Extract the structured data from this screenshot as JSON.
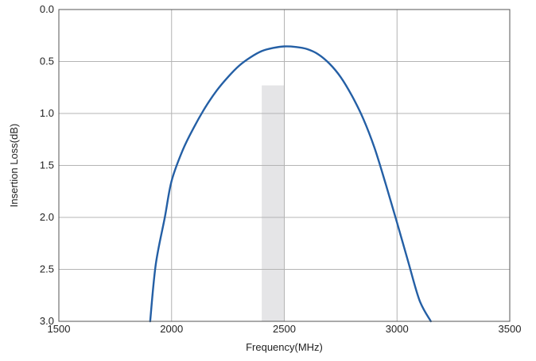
{
  "chart_data": {
    "type": "line",
    "title": "",
    "xlabel": "Frequency(MHz)",
    "ylabel": "Insertion Loss(dB)",
    "xlim": [
      1500,
      3500
    ],
    "ylim": [
      0.0,
      3.0
    ],
    "y_inverted": true,
    "grid": true,
    "x_ticks": [
      "1500",
      "2000",
      "2500",
      "3000",
      "3500"
    ],
    "y_ticks": [
      "0.0",
      "0.5",
      "1.0",
      "1.5",
      "2.0",
      "2.5",
      "3.0"
    ],
    "band": {
      "x_start": 2400,
      "x_end": 2500,
      "y_top": 0.73,
      "y_bottom": 3.0,
      "color": "#e5e5e7"
    },
    "series": [
      {
        "color": "#245fa5",
        "x": [
          1905,
          1930,
          1970,
          2000,
          2050,
          2100,
          2150,
          2200,
          2250,
          2300,
          2350,
          2400,
          2450,
          2500,
          2550,
          2600,
          2650,
          2700,
          2750,
          2800,
          2850,
          2900,
          2950,
          3000,
          3050,
          3100,
          3150
        ],
        "y": [
          3.0,
          2.45,
          2.0,
          1.65,
          1.35,
          1.13,
          0.94,
          0.78,
          0.65,
          0.54,
          0.46,
          0.4,
          0.37,
          0.355,
          0.36,
          0.38,
          0.43,
          0.52,
          0.65,
          0.83,
          1.05,
          1.33,
          1.68,
          2.05,
          2.43,
          2.8,
          3.0
        ]
      }
    ]
  }
}
